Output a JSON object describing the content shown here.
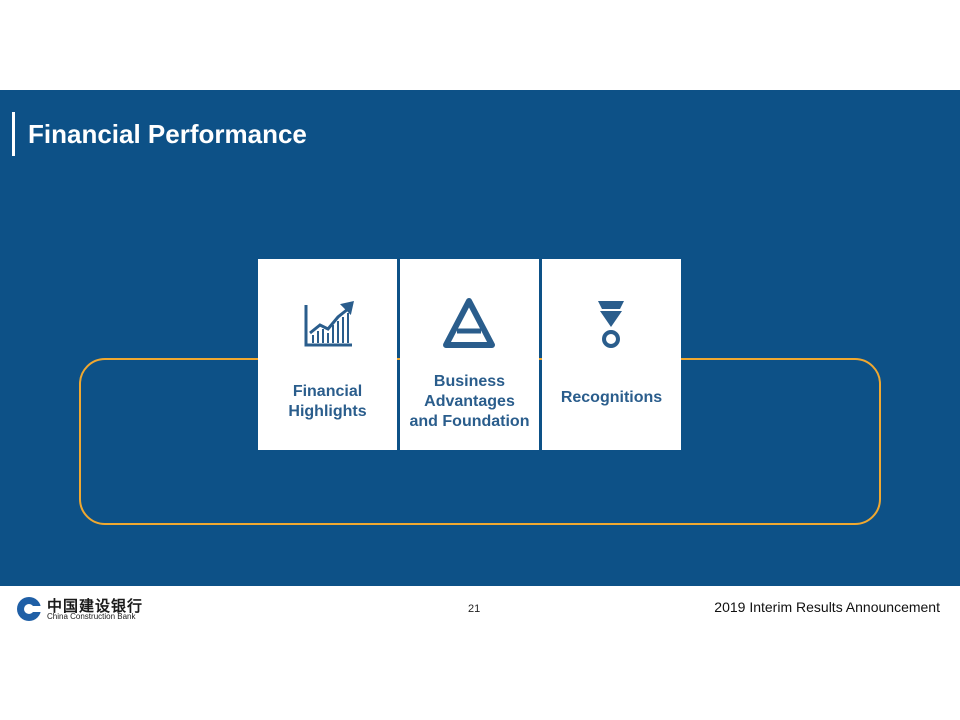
{
  "header": {
    "title": "Financial Performance"
  },
  "cards": [
    {
      "label": "Financial\nHighlights",
      "icon": "growth-chart-icon"
    },
    {
      "label": "Business\nAdvantages\nand Foundation",
      "icon": "triangle-letter-a-icon"
    },
    {
      "label": "Recognitions",
      "icon": "medal-icon"
    }
  ],
  "footer": {
    "logo_cn": "中国建设银行",
    "logo_en": "China Construction Bank",
    "page_number": "21",
    "announcement": "2019 Interim Results Announcement"
  },
  "colors": {
    "band": "#0d5187",
    "loop": "#f0a830",
    "card_text": "#2a5d8c"
  }
}
